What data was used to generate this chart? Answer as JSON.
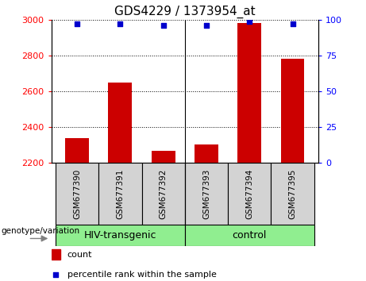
{
  "title": "GDS4229 / 1373954_at",
  "samples": [
    "GSM677390",
    "GSM677391",
    "GSM677392",
    "GSM677393",
    "GSM677394",
    "GSM677395"
  ],
  "count_values": [
    2340,
    2650,
    2270,
    2305,
    2980,
    2780
  ],
  "percentile_values": [
    97,
    97,
    96,
    96,
    99,
    97
  ],
  "ylim_left": [
    2200,
    3000
  ],
  "ylim_right": [
    0,
    100
  ],
  "yticks_left": [
    2200,
    2400,
    2600,
    2800,
    3000
  ],
  "yticks_right": [
    0,
    25,
    50,
    75,
    100
  ],
  "bar_color": "#cc0000",
  "dot_color": "#0000cc",
  "sample_box_color": "#d3d3d3",
  "group1_label": "HIV-transgenic",
  "group2_label": "control",
  "group_color": "#90ee90",
  "genotype_label": "genotype/variation",
  "legend_count": "count",
  "legend_percentile": "percentile rank within the sample",
  "group1_indices": [
    0,
    1,
    2
  ],
  "group2_indices": [
    3,
    4,
    5
  ],
  "figsize": [
    4.61,
    3.54
  ],
  "dpi": 100
}
